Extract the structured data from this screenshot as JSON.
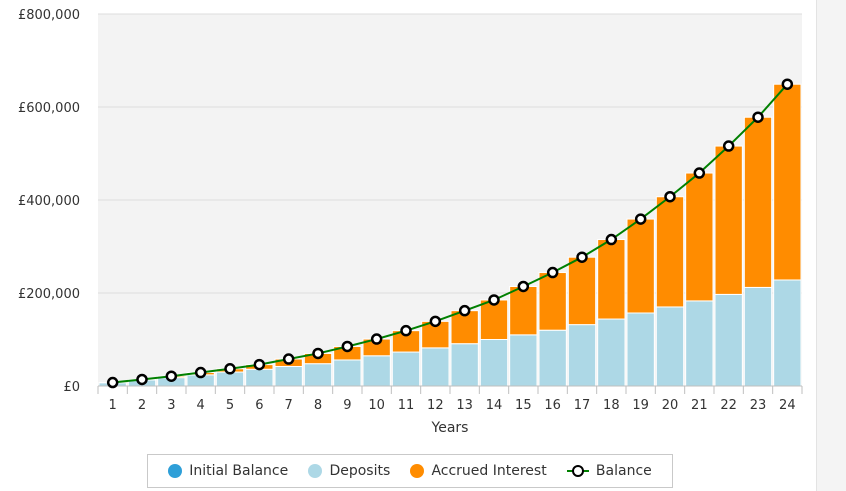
{
  "chart_data": {
    "type": "bar",
    "stacked": true,
    "xlabel": "Years",
    "ylabel": "",
    "ylim": [
      0,
      800000
    ],
    "y_ticks": [
      0,
      200000,
      400000,
      600000,
      800000
    ],
    "y_tick_labels": [
      "£0",
      "£200,000",
      "£400,000",
      "£600,000",
      "£800,000"
    ],
    "categories": [
      "1",
      "2",
      "3",
      "4",
      "5",
      "6",
      "7",
      "8",
      "9",
      "10",
      "11",
      "12",
      "13",
      "14",
      "15",
      "16",
      "17",
      "18",
      "19",
      "20",
      "21",
      "22",
      "23",
      "24"
    ],
    "grid": "horizontal",
    "legend_position": "bottom",
    "series": [
      {
        "name": "Initial Balance",
        "kind": "bar",
        "color": "#2e9fd8",
        "values": [
          0,
          0,
          0,
          0,
          0,
          0,
          0,
          0,
          0,
          0,
          0,
          0,
          0,
          0,
          0,
          0,
          0,
          0,
          0,
          0,
          0,
          0,
          0,
          0
        ]
      },
      {
        "name": "Deposits",
        "kind": "bar",
        "color": "#add8e6",
        "values": [
          7000,
          13000,
          18000,
          24000,
          30000,
          36000,
          42000,
          48000,
          56000,
          65000,
          73000,
          82000,
          91000,
          100000,
          110000,
          120000,
          132000,
          144000,
          157000,
          170000,
          183000,
          197000,
          212000,
          228000
        ]
      },
      {
        "name": "Accrued Interest",
        "kind": "bar",
        "color": "#ff8c00",
        "values": [
          500,
          1000,
          3000,
          5000,
          7000,
          10000,
          16000,
          22000,
          29000,
          36000,
          46000,
          57000,
          71000,
          85000,
          104000,
          124000,
          145000,
          171000,
          202000,
          237000,
          275000,
          319000,
          366000,
          421000
        ]
      },
      {
        "name": "Balance",
        "kind": "line",
        "color": "#008000",
        "marker_color": "#000000",
        "values": [
          7500,
          14000,
          21000,
          29000,
          37000,
          46000,
          58000,
          70000,
          85000,
          101000,
          119000,
          139000,
          162000,
          185000,
          214000,
          244000,
          277000,
          315000,
          359000,
          407000,
          458000,
          516000,
          578000,
          649000
        ]
      }
    ]
  }
}
